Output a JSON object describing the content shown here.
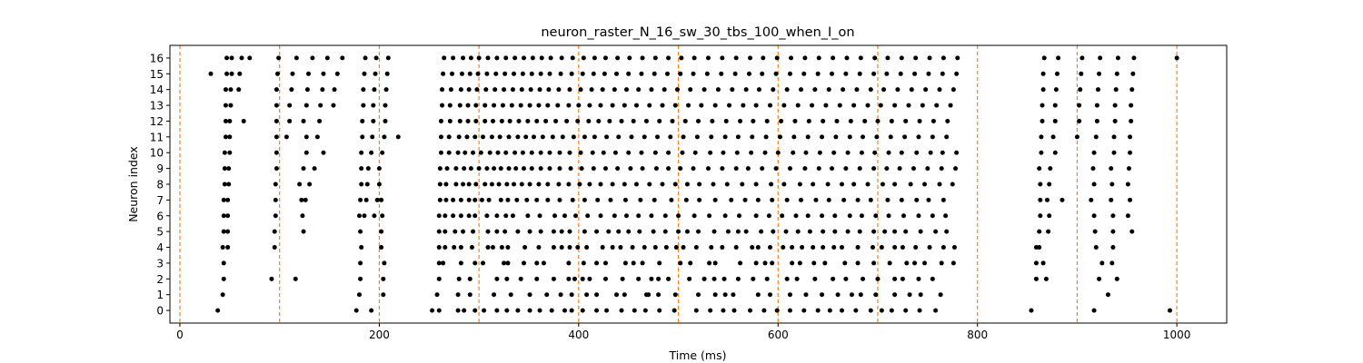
{
  "chart_data": {
    "type": "scatter",
    "title": "neuron_raster_N_16_sw_30_tbs_100_when_I_on",
    "xlabel": "Time (ms)",
    "ylabel": "Neuron index",
    "xlim": [
      -10,
      1050
    ],
    "ylim": [
      -0.8,
      16.8
    ],
    "x_ticks": [
      0,
      200,
      400,
      600,
      800,
      1000
    ],
    "y_ticks": [
      0,
      1,
      2,
      3,
      4,
      5,
      6,
      7,
      8,
      9,
      10,
      11,
      12,
      13,
      14,
      15,
      16
    ],
    "grid": false,
    "legend": "none",
    "marker_color": "#000000",
    "vline_color": "#ff7f0e",
    "vlines": [
      0,
      100,
      200,
      300,
      400,
      500,
      600,
      700,
      800,
      900,
      1000
    ],
    "series": [
      {
        "neuron": 0,
        "x": [
          38,
          177,
          192,
          253,
          260,
          279,
          285,
          296,
          305,
          318,
          328,
          339,
          351,
          361,
          373,
          386,
          393,
          404,
          418,
          428,
          443,
          456,
          467,
          481,
          496,
          518,
          532,
          545,
          556,
          572,
          586,
          599,
          612,
          626,
          640,
          652,
          664,
          678,
          693,
          704,
          714,
          728,
          742,
          758,
          854,
          917,
          993
        ]
      },
      {
        "neuron": 1,
        "x": [
          43,
          180,
          204,
          258,
          279,
          291,
          315,
          332,
          351,
          368,
          382,
          393,
          408,
          418,
          438,
          446,
          468,
          470,
          480,
          497,
          520,
          537,
          547,
          555,
          580,
          592,
          612,
          628,
          644,
          660,
          674,
          683,
          698,
          717,
          732,
          743,
          763,
          931
        ]
      },
      {
        "neuron": 2,
        "x": [
          44,
          92,
          116,
          181,
          204,
          260,
          280,
          291,
          318,
          328,
          342,
          358,
          375,
          390,
          396,
          404,
          411,
          427,
          444,
          460,
          473,
          480,
          490,
          511,
          526,
          536,
          546,
          560,
          575,
          589,
          609,
          619,
          637,
          655,
          668,
          685,
          700,
          717,
          725,
          741,
          755,
          859,
          869,
          922,
          940
        ]
      },
      {
        "neuron": 3,
        "x": [
          44,
          181,
          205,
          260,
          264,
          282,
          296,
          304,
          325,
          329,
          345,
          358,
          365,
          390,
          405,
          418,
          427,
          447,
          455,
          464,
          481,
          502,
          512,
          531,
          537,
          562,
          578,
          587,
          594,
          614,
          622,
          636,
          647,
          667,
          680,
          696,
          712,
          729,
          737,
          747,
          764,
          776,
          859,
          866,
          925,
          935
        ]
      },
      {
        "neuron": 4,
        "x": [
          43,
          48,
          95,
          182,
          202,
          260,
          266,
          275,
          282,
          293,
          309,
          314,
          323,
          329,
          346,
          360,
          375,
          383,
          391,
          399,
          408,
          424,
          434,
          442,
          454,
          466,
          477,
          488,
          498,
          505,
          518,
          533,
          544,
          558,
          574,
          580,
          592,
          605,
          614,
          624,
          635,
          645,
          656,
          664,
          680,
          695,
          704,
          717,
          725,
          738,
          752,
          766,
          777,
          859,
          862,
          919,
          936
        ]
      },
      {
        "neuron": 5,
        "x": [
          44,
          48,
          95,
          124,
          181,
          202,
          260,
          266,
          276,
          284,
          294,
          309,
          318,
          326,
          339,
          351,
          362,
          375,
          383,
          391,
          406,
          418,
          430,
          440,
          450,
          461,
          475,
          487,
          500,
          509,
          520,
          536,
          550,
          560,
          568,
          583,
          595,
          608,
          620,
          632,
          645,
          657,
          670,
          682,
          696,
          707,
          717,
          728,
          743,
          758,
          769,
          862,
          871,
          918,
          936,
          955
        ]
      },
      {
        "neuron": 6,
        "x": [
          44,
          48,
          96,
          123,
          180,
          185,
          195,
          203,
          260,
          266,
          274,
          282,
          290,
          296,
          308,
          318,
          327,
          334,
          349,
          361,
          376,
          386,
          397,
          409,
          422,
          436,
          448,
          460,
          473,
          487,
          500,
          516,
          531,
          547,
          561,
          578,
          591,
          604,
          618,
          630,
          644,
          657,
          672,
          684,
          698,
          711,
          726,
          741,
          755,
          768,
          863,
          872,
          917,
          936,
          951
        ]
      },
      {
        "neuron": 7,
        "x": [
          44,
          48,
          96,
          122,
          126,
          181,
          187,
          198,
          202,
          261,
          267,
          274,
          282,
          290,
          296,
          303,
          310,
          322,
          329,
          338,
          348,
          358,
          369,
          381,
          394,
          406,
          419,
          432,
          447,
          462,
          476,
          493,
          508,
          521,
          537,
          553,
          567,
          580,
          594,
          609,
          623,
          638,
          651,
          666,
          680,
          693,
          710,
          724,
          739,
          751,
          766,
          863,
          870,
          885,
          914,
          934,
          953
        ]
      },
      {
        "neuron": 8,
        "x": [
          45,
          49,
          96,
          120,
          130,
          182,
          188,
          200,
          261,
          267,
          277,
          284,
          290,
          297,
          306,
          313,
          320,
          328,
          335,
          343,
          351,
          360,
          369,
          380,
          390,
          401,
          411,
          422,
          434,
          446,
          458,
          471,
          484,
          497,
          509,
          521,
          535,
          549,
          564,
          578,
          593,
          606,
          622,
          635,
          650,
          664,
          676,
          690,
          705,
          717,
          733,
          747,
          762,
          775,
          863,
          872,
          917,
          935,
          951
        ]
      },
      {
        "neuron": 9,
        "x": [
          45,
          49,
          97,
          124,
          135,
          182,
          189,
          200,
          261,
          268,
          277,
          285,
          292,
          300,
          308,
          315,
          322,
          330,
          337,
          345,
          353,
          362,
          371,
          381,
          392,
          403,
          415,
          427,
          439,
          452,
          464,
          478,
          490,
          502,
          515,
          530,
          544,
          558,
          570,
          584,
          598,
          612,
          627,
          641,
          654,
          668,
          682,
          696,
          709,
          722,
          736,
          750,
          764,
          778,
          862,
          873,
          916,
          934,
          952
        ]
      },
      {
        "neuron": 10,
        "x": [
          45,
          50,
          97,
          127,
          144,
          182,
          192,
          203,
          262,
          270,
          279,
          286,
          294,
          302,
          311,
          319,
          327,
          336,
          344,
          353,
          362,
          371,
          381,
          391,
          402,
          414,
          425,
          437,
          450,
          463,
          477,
          490,
          504,
          517,
          532,
          545,
          559,
          573,
          587,
          600,
          615,
          628,
          642,
          656,
          670,
          684,
          697,
          711,
          724,
          739,
          753,
          765,
          779,
          864,
          878,
          917,
          937,
          953
        ]
      },
      {
        "neuron": 11,
        "x": [
          46,
          50,
          97,
          107,
          127,
          138,
          183,
          193,
          205,
          219,
          262,
          270,
          280,
          288,
          296,
          304,
          313,
          321,
          330,
          339,
          347,
          355,
          364,
          374,
          384,
          395,
          406,
          416,
          428,
          440,
          453,
          466,
          479,
          492,
          505,
          519,
          533,
          547,
          560,
          574,
          588,
          602,
          616,
          630,
          644,
          658,
          672,
          685,
          699,
          713,
          727,
          741,
          755,
          769,
          864,
          876,
          900,
          919,
          937,
          953
        ]
      },
      {
        "neuron": 12,
        "x": [
          46,
          50,
          64,
          97,
          110,
          124,
          140,
          183,
          194,
          206,
          262,
          271,
          281,
          289,
          297,
          306,
          314,
          323,
          331,
          340,
          349,
          358,
          367,
          377,
          388,
          399,
          410,
          420,
          431,
          443,
          455,
          468,
          481,
          494,
          507,
          520,
          534,
          548,
          562,
          575,
          589,
          603,
          617,
          631,
          645,
          659,
          673,
          687,
          700,
          714,
          728,
          742,
          756,
          770,
          865,
          878,
          902,
          920,
          938,
          954
        ]
      },
      {
        "neuron": 13,
        "x": [
          46,
          51,
          97,
          110,
          127,
          141,
          154,
          184,
          194,
          206,
          263,
          271,
          281,
          289,
          297,
          306,
          315,
          324,
          333,
          342,
          351,
          360,
          369,
          379,
          390,
          400,
          411,
          422,
          434,
          446,
          458,
          471,
          484,
          497,
          510,
          523,
          537,
          551,
          565,
          578,
          592,
          606,
          620,
          634,
          648,
          662,
          676,
          690,
          703,
          717,
          731,
          745,
          759,
          773,
          865,
          878,
          902,
          920,
          938,
          954
        ]
      },
      {
        "neuron": 14,
        "x": [
          46,
          51,
          59,
          97,
          112,
          128,
          143,
          155,
          184,
          195,
          207,
          263,
          272,
          282,
          290,
          298,
          307,
          316,
          325,
          334,
          343,
          352,
          361,
          370,
          380,
          391,
          402,
          413,
          424,
          436,
          448,
          460,
          473,
          486,
          499,
          512,
          526,
          540,
          554,
          568,
          581,
          595,
          609,
          623,
          637,
          651,
          665,
          679,
          693,
          706,
          720,
          734,
          748,
          762,
          776,
          866,
          879,
          903,
          921,
          939,
          955
        ]
      },
      {
        "neuron": 15,
        "x": [
          31,
          47,
          52,
          60,
          98,
          113,
          129,
          144,
          158,
          185,
          196,
          208,
          264,
          273,
          283,
          291,
          299,
          308,
          317,
          326,
          335,
          344,
          353,
          362,
          371,
          382,
          393,
          404,
          415,
          426,
          438,
          450,
          463,
          476,
          489,
          502,
          515,
          529,
          543,
          557,
          571,
          584,
          598,
          612,
          626,
          640,
          654,
          668,
          682,
          696,
          709,
          723,
          737,
          751,
          765,
          779,
          866,
          880,
          904,
          922,
          940,
          956
        ]
      },
      {
        "neuron": 16,
        "x": [
          47,
          52,
          62,
          70,
          99,
          117,
          133,
          148,
          163,
          186,
          197,
          209,
          265,
          274,
          284,
          292,
          300,
          309,
          318,
          327,
          336,
          345,
          354,
          363,
          372,
          383,
          394,
          405,
          416,
          427,
          439,
          451,
          464,
          477,
          490,
          503,
          516,
          530,
          544,
          558,
          572,
          585,
          599,
          613,
          627,
          641,
          655,
          669,
          683,
          697,
          710,
          724,
          738,
          752,
          766,
          780,
          867,
          881,
          905,
          923,
          941,
          957,
          1000
        ]
      }
    ]
  }
}
